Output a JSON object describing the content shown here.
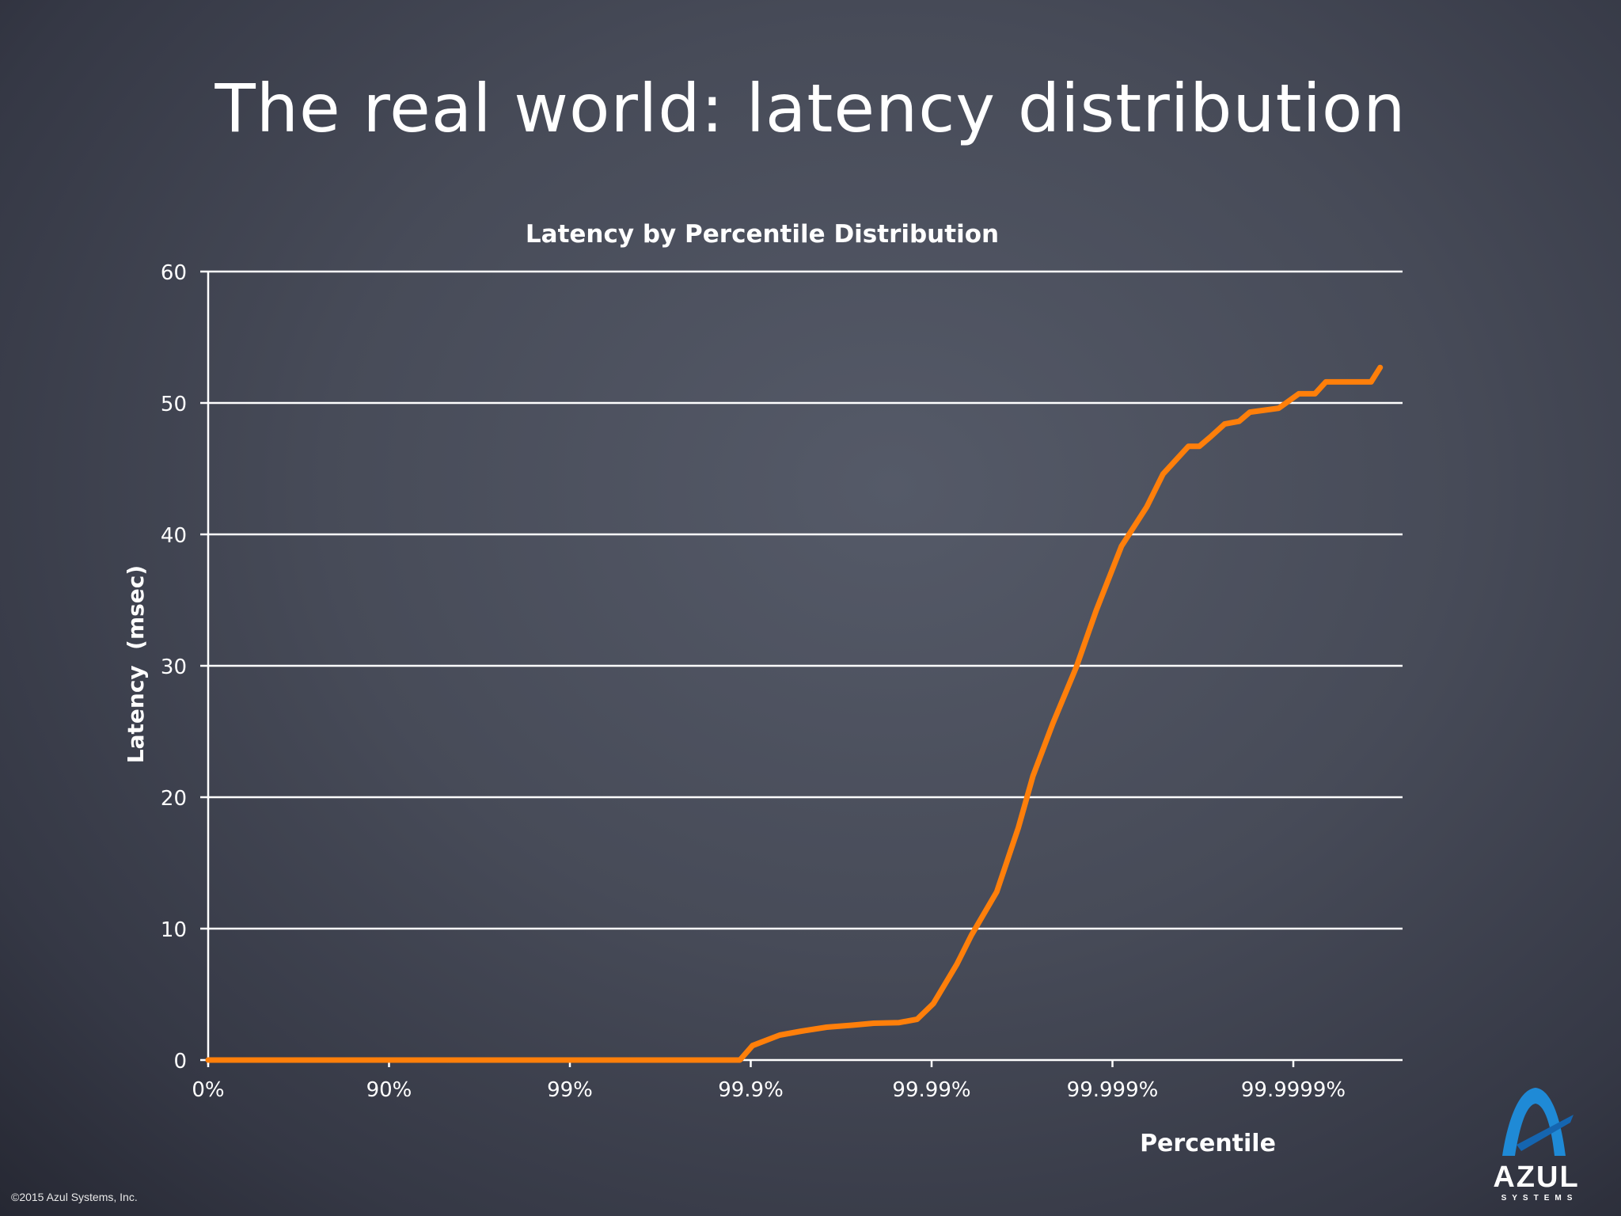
{
  "slide": {
    "title": "The real world: latency distribution",
    "copyright": "©2015 Azul Systems, Inc.",
    "logo": {
      "word": "AZUL",
      "sub": "SYSTEMS",
      "mark": "®",
      "icon": "azul-a-logo-icon",
      "color": "#1f8ad6"
    }
  },
  "colors": {
    "line": "#ff7f0a",
    "grid": "#ffffff",
    "text": "#ffffff"
  },
  "chart_data": {
    "type": "line",
    "title": "Latency by Percentile Distribution",
    "xlabel": "Percentile",
    "ylabel": "Latency  (msec)",
    "x_scale": "log-nines (0 = 0%, 1 = 90%, 2 = 99%, ... 6 = 99.9999%)",
    "x_ticks": [
      "0%",
      "90%",
      "99%",
      "99.9%",
      "99.99%",
      "99.999%",
      "99.9999%"
    ],
    "y_ticks": [
      0,
      10,
      20,
      30,
      40,
      50,
      60
    ],
    "ylim": [
      0,
      60
    ],
    "xlim": [
      0,
      6.6
    ],
    "grid": true,
    "legend": "none",
    "series": [
      {
        "name": "Latency",
        "x": [
          0,
          2.94,
          3.01,
          3.16,
          3.28,
          3.42,
          3.56,
          3.68,
          3.82,
          3.92,
          4.01,
          4.14,
          4.22,
          4.36,
          4.48,
          4.56,
          4.67,
          4.8,
          4.91,
          5.05,
          5.19,
          5.28,
          5.42,
          5.48,
          5.54,
          5.62,
          5.7,
          5.76,
          5.92,
          6.03,
          6.12,
          6.18,
          6.43,
          6.48
        ],
        "values": [
          0,
          0,
          1.1,
          1.9,
          2.2,
          2.5,
          2.65,
          2.8,
          2.85,
          3.1,
          4.3,
          7.3,
          9.5,
          12.8,
          17.7,
          21.6,
          25.6,
          29.9,
          34.2,
          39.1,
          42.1,
          44.6,
          46.7,
          46.7,
          47.4,
          48.4,
          48.6,
          49.3,
          49.6,
          50.7,
          50.7,
          51.6,
          51.6,
          52.7
        ]
      }
    ]
  }
}
